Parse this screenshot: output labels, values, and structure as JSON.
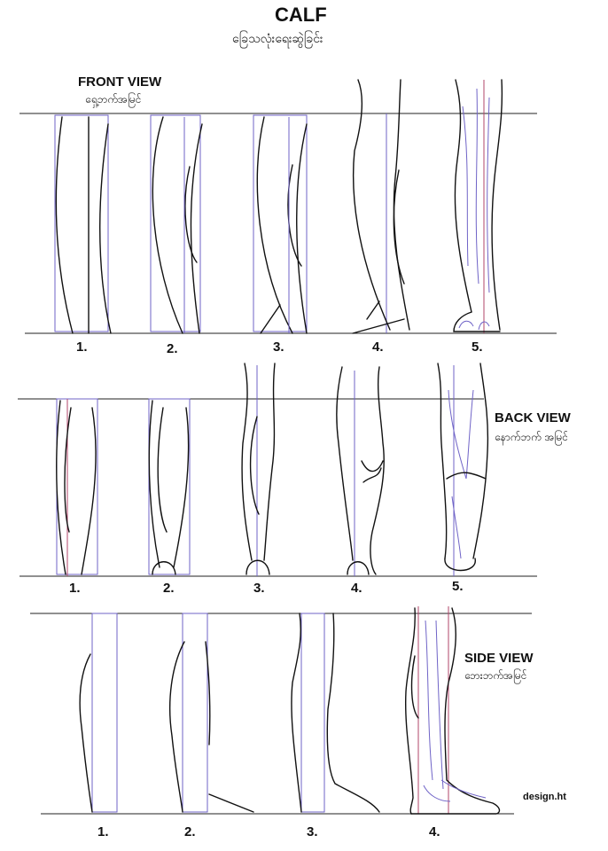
{
  "title": "CALF",
  "title_mm": "ခြေသလုံးရေးဆွဲခြင်း",
  "credit": "design.ht",
  "colors": {
    "guide": "#6f63c7",
    "guide_alt": "#b0456a",
    "ink": "#111111"
  },
  "sections": [
    {
      "id": "front",
      "heading": "FRONT VIEW",
      "heading_mm": "ရှေ့ဘက်အမြင်",
      "steps": [
        "1.",
        "2.",
        "3.",
        "4.",
        "5."
      ]
    },
    {
      "id": "back",
      "heading": "BACK VIEW",
      "heading_mm": "နောက်ဘက် အမြင်",
      "steps": [
        "1.",
        "2.",
        "3.",
        "4.",
        "5."
      ]
    },
    {
      "id": "side",
      "heading": "SIDE VIEW",
      "heading_mm": "ဘေးဘက်အမြင်",
      "steps": [
        "1.",
        "2.",
        "3.",
        "4."
      ]
    }
  ]
}
